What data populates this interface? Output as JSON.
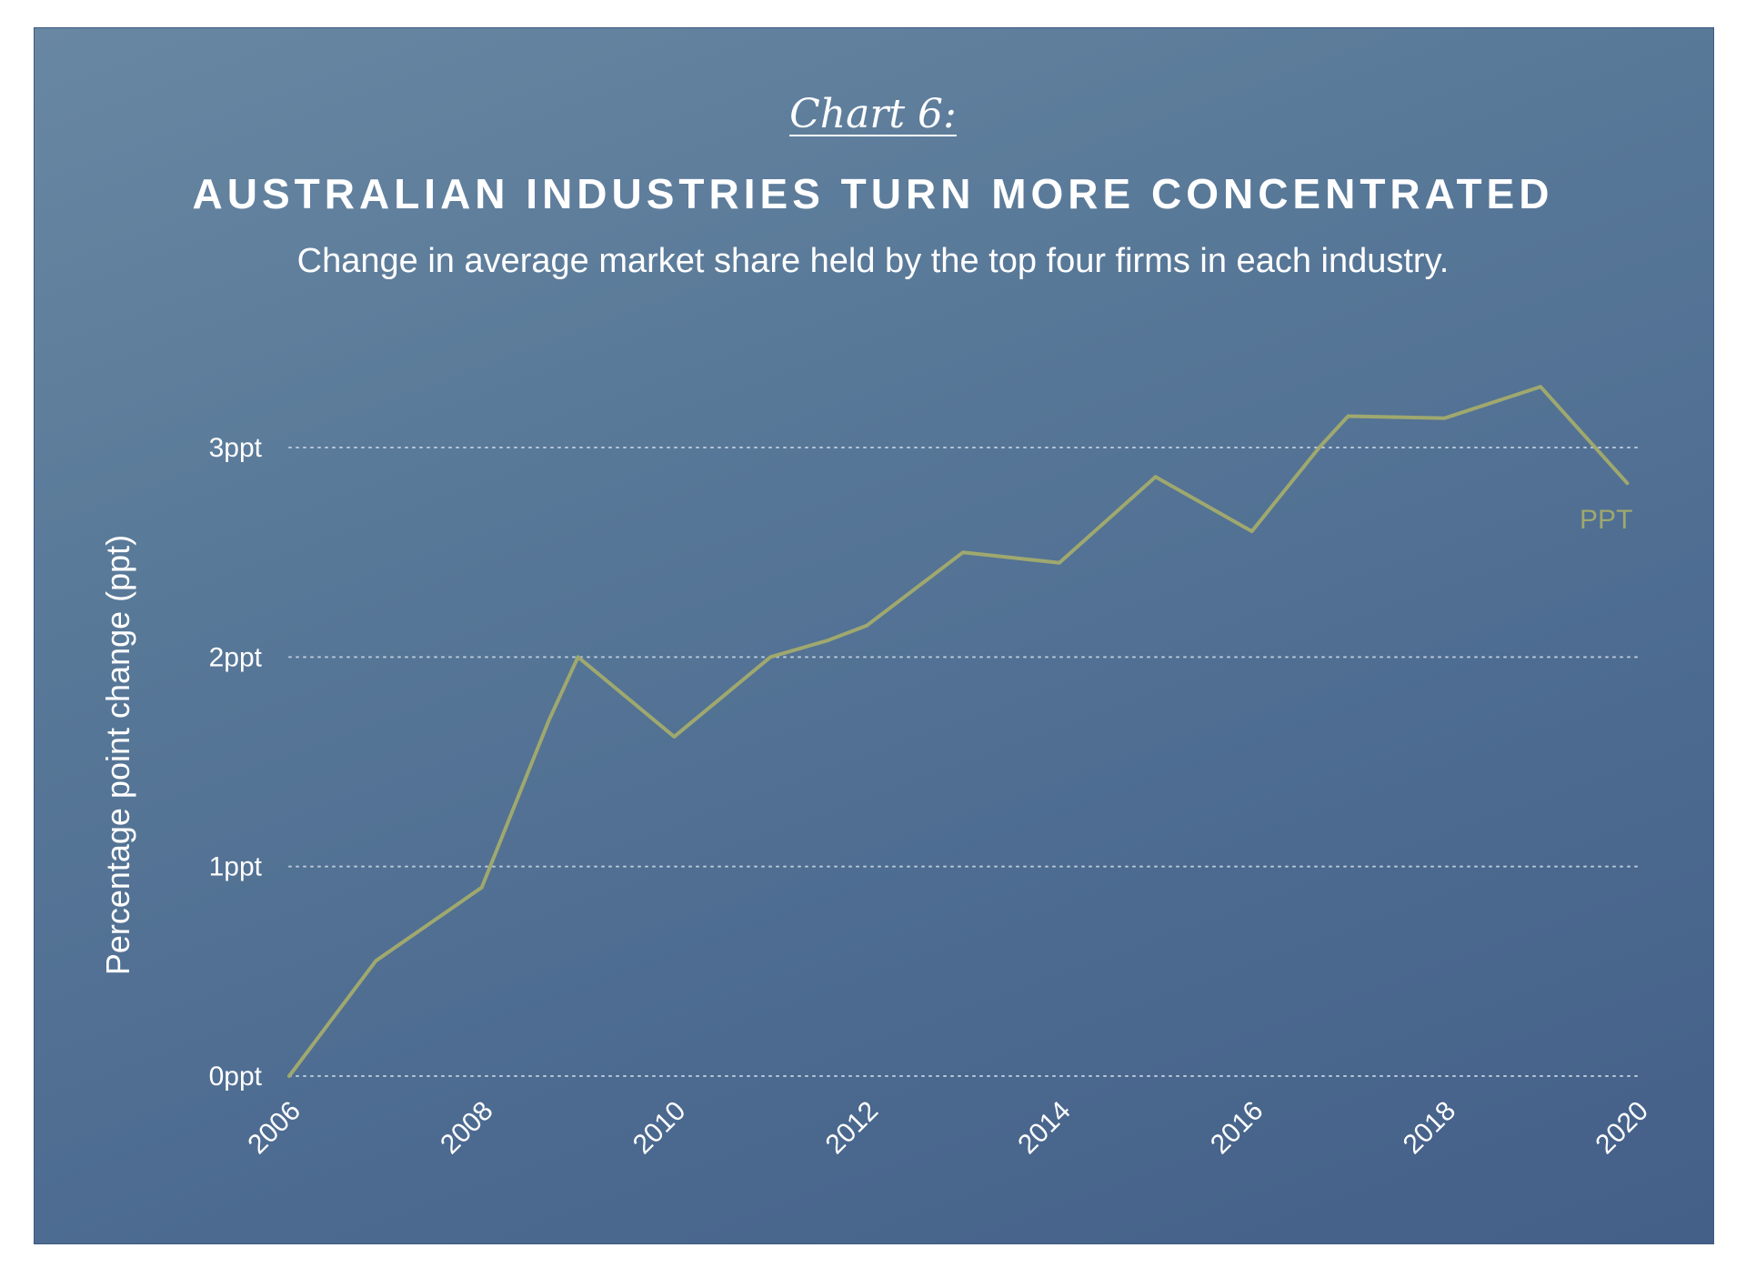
{
  "header": {
    "kicker": "Chart 6:",
    "title": "AUSTRALIAN INDUSTRIES TURN MORE CONCENTRATED",
    "subtitle": "Change in average market share held by the top four firms in each industry."
  },
  "colors": {
    "line": "#9fa86e",
    "grid": "#b7c6d8",
    "text": "#ffffff"
  },
  "chart_data": {
    "type": "line",
    "ylabel": "Percentage point change (ppt)",
    "xlabel": "",
    "ylim": [
      0,
      3.3
    ],
    "yticks": [
      {
        "value": 0,
        "label": "0ppt"
      },
      {
        "value": 1,
        "label": "1ppt"
      },
      {
        "value": 2,
        "label": "2ppt"
      },
      {
        "value": 3,
        "label": "3ppt"
      }
    ],
    "xlim": [
      2006,
      2020
    ],
    "xticks": [
      "2006",
      "2008",
      "2010",
      "2012",
      "2014",
      "2016",
      "2018",
      "2020"
    ],
    "grid": true,
    "series": [
      {
        "name": "PPT",
        "x": [
          2006,
          2006.9,
          2008,
          2008.7,
          2009,
          2010,
          2011,
          2011.6,
          2012,
          2013,
          2014,
          2015,
          2016,
          2016.7,
          2017,
          2018,
          2019,
          2019.9
        ],
        "y": [
          0,
          0.55,
          0.9,
          1.7,
          2.0,
          1.62,
          2.0,
          2.08,
          2.15,
          2.5,
          2.45,
          2.86,
          2.6,
          3.0,
          3.15,
          3.14,
          3.29,
          2.83
        ]
      }
    ]
  }
}
